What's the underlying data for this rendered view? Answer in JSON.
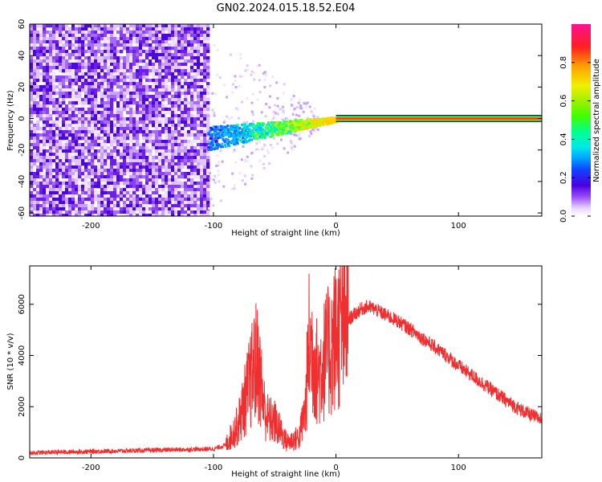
{
  "title": "GN02.2024.015.18.52.E04",
  "colors": {
    "snr_line": "#f03030",
    "spectrogram_low": "#7a3cf0",
    "spectrogram_mid": "#00e0a0",
    "spectrogram_high": "#ff2020"
  },
  "chart_data": [
    {
      "type": "heatmap",
      "title": "GN02.2024.015.18.52.E04",
      "xlabel": "Height of straight line (km)",
      "ylabel": "Frequency (Hz)",
      "xlim": [
        -250,
        168
      ],
      "ylim": [
        -62,
        60
      ],
      "xticks": [
        -200,
        -100,
        0,
        100
      ],
      "yticks": [
        -60,
        -40,
        -20,
        0,
        20,
        40,
        60
      ],
      "colorbar": {
        "label": "Normalized spectral amplitude",
        "range": [
          0,
          1
        ],
        "ticks": [
          0.0,
          0.2,
          0.4,
          0.6,
          0.8
        ],
        "colormap": "rainbow (purple-blue-cyan-green-yellow-red-magenta)"
      },
      "features": {
        "broadband_noise_x": [
          -250,
          -105
        ],
        "signal_emerges_x": -105,
        "carrier_frequency_hz": 0,
        "carrier_x_range": [
          0,
          168
        ]
      }
    },
    {
      "type": "line",
      "xlabel": "Height of straight line (km)",
      "ylabel": "SNR (10 * v/v)",
      "xlim": [
        -250,
        168
      ],
      "ylim": [
        0,
        7500
      ],
      "xticks": [
        -200,
        -100,
        0,
        100
      ],
      "yticks": [
        0,
        2000,
        4000,
        6000
      ],
      "series": [
        {
          "x": [
            -250,
            -200,
            -150,
            -100,
            -90,
            -80,
            -70,
            -65,
            -62,
            -58,
            -55,
            -50,
            -45,
            -40,
            -35,
            -30,
            -25,
            -22,
            -18,
            -15,
            -10,
            -5,
            0,
            5,
            10,
            15,
            20,
            25,
            30,
            40,
            50,
            60,
            70,
            80,
            90,
            100,
            110,
            120,
            130,
            140,
            150,
            160,
            168
          ],
          "y": [
            200,
            250,
            300,
            350,
            500,
            1300,
            3000,
            3800,
            3200,
            1800,
            1500,
            1400,
            1000,
            600,
            700,
            800,
            1900,
            4500,
            4000,
            3200,
            3800,
            4200,
            4800,
            5100,
            5400,
            5600,
            5800,
            5900,
            5850,
            5600,
            5350,
            5050,
            4700,
            4350,
            4000,
            3600,
            3250,
            2900,
            2550,
            2200,
            1900,
            1650,
            1500
          ]
        }
      ]
    }
  ]
}
